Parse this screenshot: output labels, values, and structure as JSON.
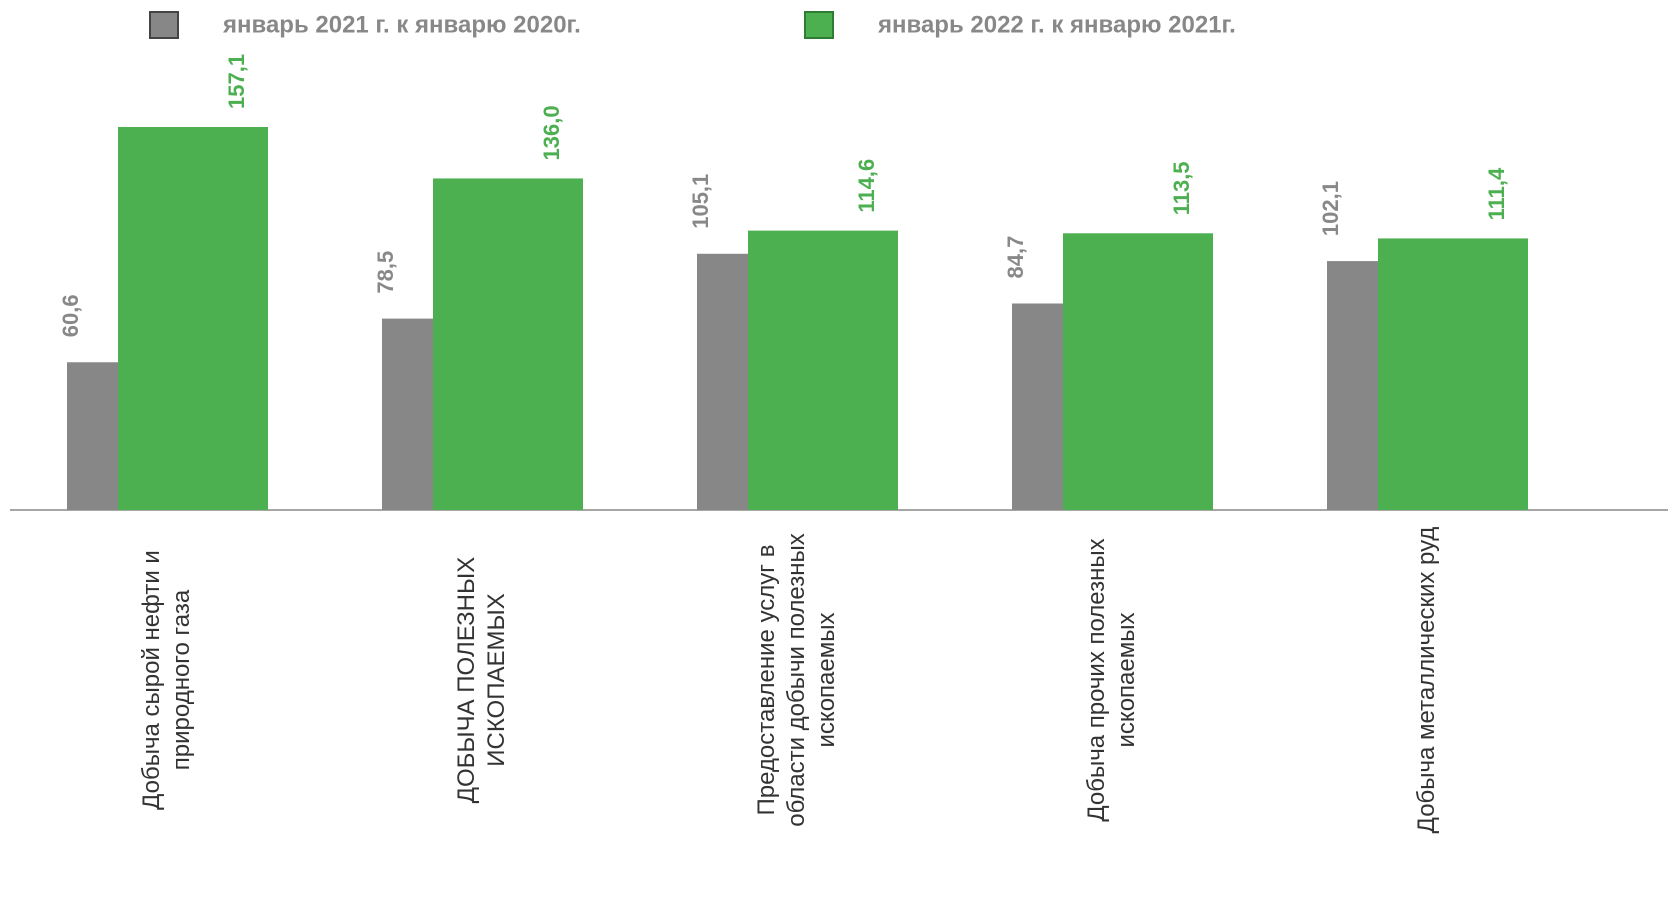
{
  "chart_data": {
    "type": "bar",
    "categories": [
      "Добыча сырой нефти и природного газа",
      "ДОБЫЧА ПОЛЕЗНЫХ ИСКОПАЕМЫХ",
      "Предоставление услуг в области добычи полезных ископаемых",
      "Добыча прочих полезных ископаемых",
      "Добыча металлических руд"
    ],
    "series": [
      {
        "name": "январь 2021 г. к январю 2020г.",
        "color": "#878787",
        "values": [
          60.6,
          78.5,
          105.1,
          84.7,
          102.1
        ],
        "value_labels": [
          "60,6",
          "78,5",
          "105,1",
          "84,7",
          "102,1"
        ]
      },
      {
        "name": "январь 2022 г. к январю 2021г.",
        "color": "#4caf50",
        "values": [
          157.1,
          136.0,
          114.6,
          113.5,
          111.4
        ],
        "value_labels": [
          "157,1",
          "136,0",
          "114,6",
          "113,5",
          "111,4"
        ]
      }
    ]
  }
}
